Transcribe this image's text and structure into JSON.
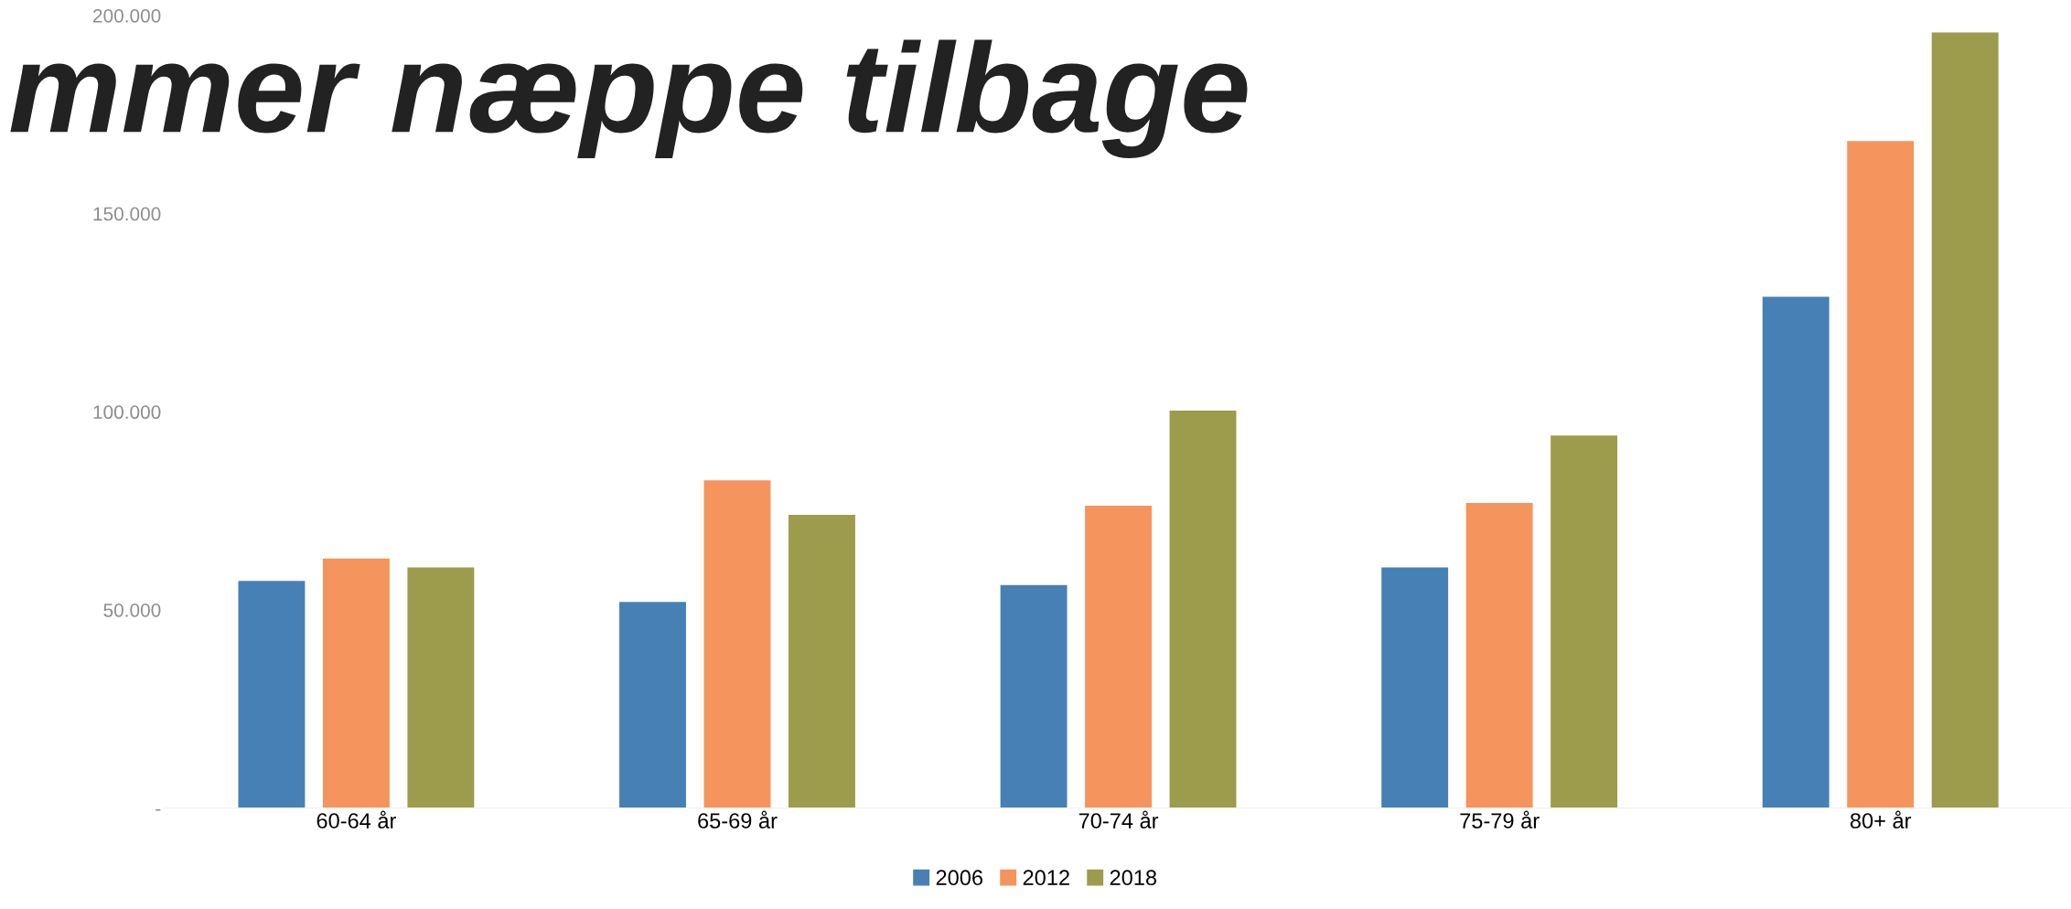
{
  "chart_data": {
    "type": "bar",
    "title": "mmer næppe tilbage",
    "categories": [
      "60-64 år",
      "65-69 år",
      "70-74 år",
      "75-79 år",
      "80+ år"
    ],
    "series": [
      {
        "name": "2006",
        "color": "#4780b4",
        "values": [
          57300,
          52000,
          56300,
          60700,
          129000
        ]
      },
      {
        "name": "2012",
        "color": "#f5945c",
        "values": [
          63000,
          82700,
          76300,
          77000,
          168300
        ]
      },
      {
        "name": "2018",
        "color": "#9c9c4c",
        "values": [
          60700,
          74000,
          100300,
          94000,
          195700
        ]
      }
    ],
    "ylim": [
      0,
      200000
    ],
    "yticks": [
      {
        "value": 0,
        "label": "-"
      },
      {
        "value": 50000,
        "label": "50.000"
      },
      {
        "value": 100000,
        "label": "100.000"
      },
      {
        "value": 150000,
        "label": "150.000"
      },
      {
        "value": 200000,
        "label": "200.000"
      }
    ],
    "grid": false,
    "legend": "bottom"
  }
}
